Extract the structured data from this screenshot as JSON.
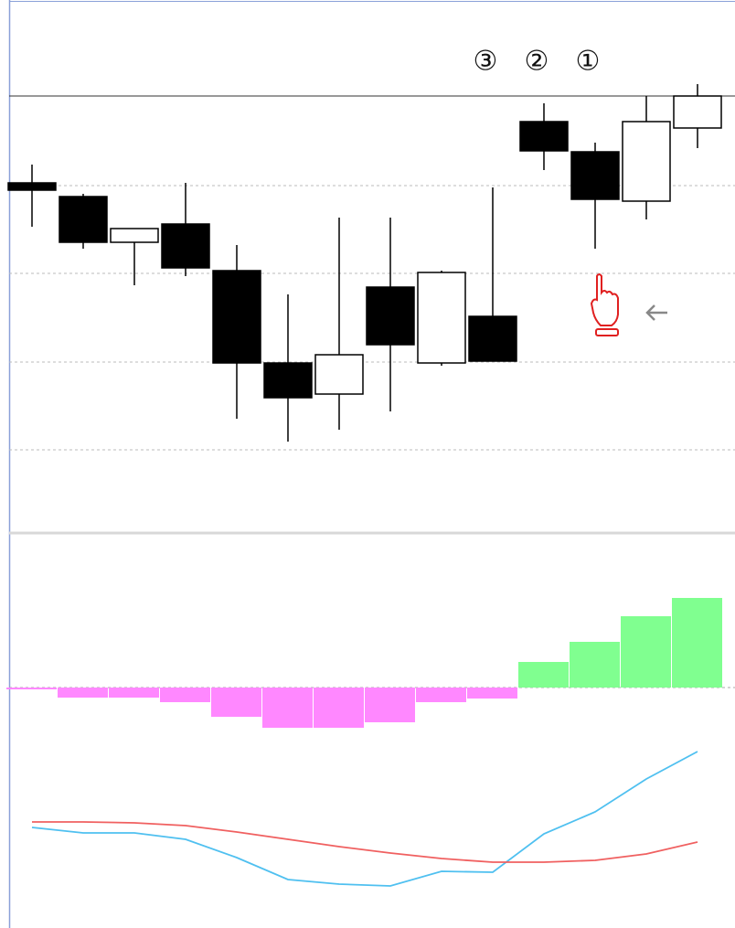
{
  "chart_data": {
    "type": "candlestick",
    "annotations": [
      "③",
      "②",
      "①"
    ],
    "ylim": [
      0,
      580
    ],
    "yticks": [
      377,
      281,
      184,
      88
    ],
    "grid": true,
    "up_color": "#ffffff",
    "down_color": "#000000",
    "candles": [
      {
        "open": 380,
        "high": 400,
        "low": 332,
        "close": 372
      },
      {
        "open": 365,
        "high": 368,
        "low": 308,
        "close": 315
      },
      {
        "open": 315,
        "high": 330,
        "low": 268,
        "close": 330
      },
      {
        "open": 335,
        "high": 380,
        "low": 278,
        "close": 287
      },
      {
        "open": 284,
        "high": 312,
        "low": 122,
        "close": 183
      },
      {
        "open": 183,
        "high": 258,
        "low": 97,
        "close": 145
      },
      {
        "open": 149,
        "high": 342,
        "low": 110,
        "close": 192
      },
      {
        "open": 266,
        "high": 342,
        "low": 130,
        "close": 203
      },
      {
        "open": 183,
        "high": 284,
        "low": 180,
        "close": 282
      },
      {
        "open": 234,
        "high": 375,
        "low": 185,
        "close": 185
      },
      {
        "open": 447,
        "high": 467,
        "low": 394,
        "close": 415
      },
      {
        "open": 414,
        "high": 424,
        "low": 308,
        "close": 362
      },
      {
        "open": 360,
        "high": 475,
        "low": 340,
        "close": 447
      },
      {
        "open": 440,
        "high": 488,
        "low": 418,
        "close": 475
      }
    ],
    "indicator": {
      "ylim": [
        -263,
        167
      ],
      "zero": 0,
      "positive_color": "#80ff90",
      "negative_color": "#ff88ff",
      "histogram": [
        -2,
        -11,
        -11,
        -16,
        -32,
        -44,
        -44,
        -38,
        -16,
        -12,
        28,
        50,
        78,
        98
      ],
      "series": [
        {
          "color": "#4fc0f0",
          "values": [
            -153,
            -159,
            -159,
            -166,
            -186,
            -210,
            -215,
            -217,
            -201,
            -202,
            -160,
            -136,
            -100,
            -70
          ]
        },
        {
          "color": "#f06060",
          "values": [
            -147,
            -147,
            -148,
            -151,
            -158,
            -166,
            -174,
            -181,
            -187,
            -191,
            -191,
            -189,
            -182,
            -169
          ]
        }
      ]
    }
  }
}
